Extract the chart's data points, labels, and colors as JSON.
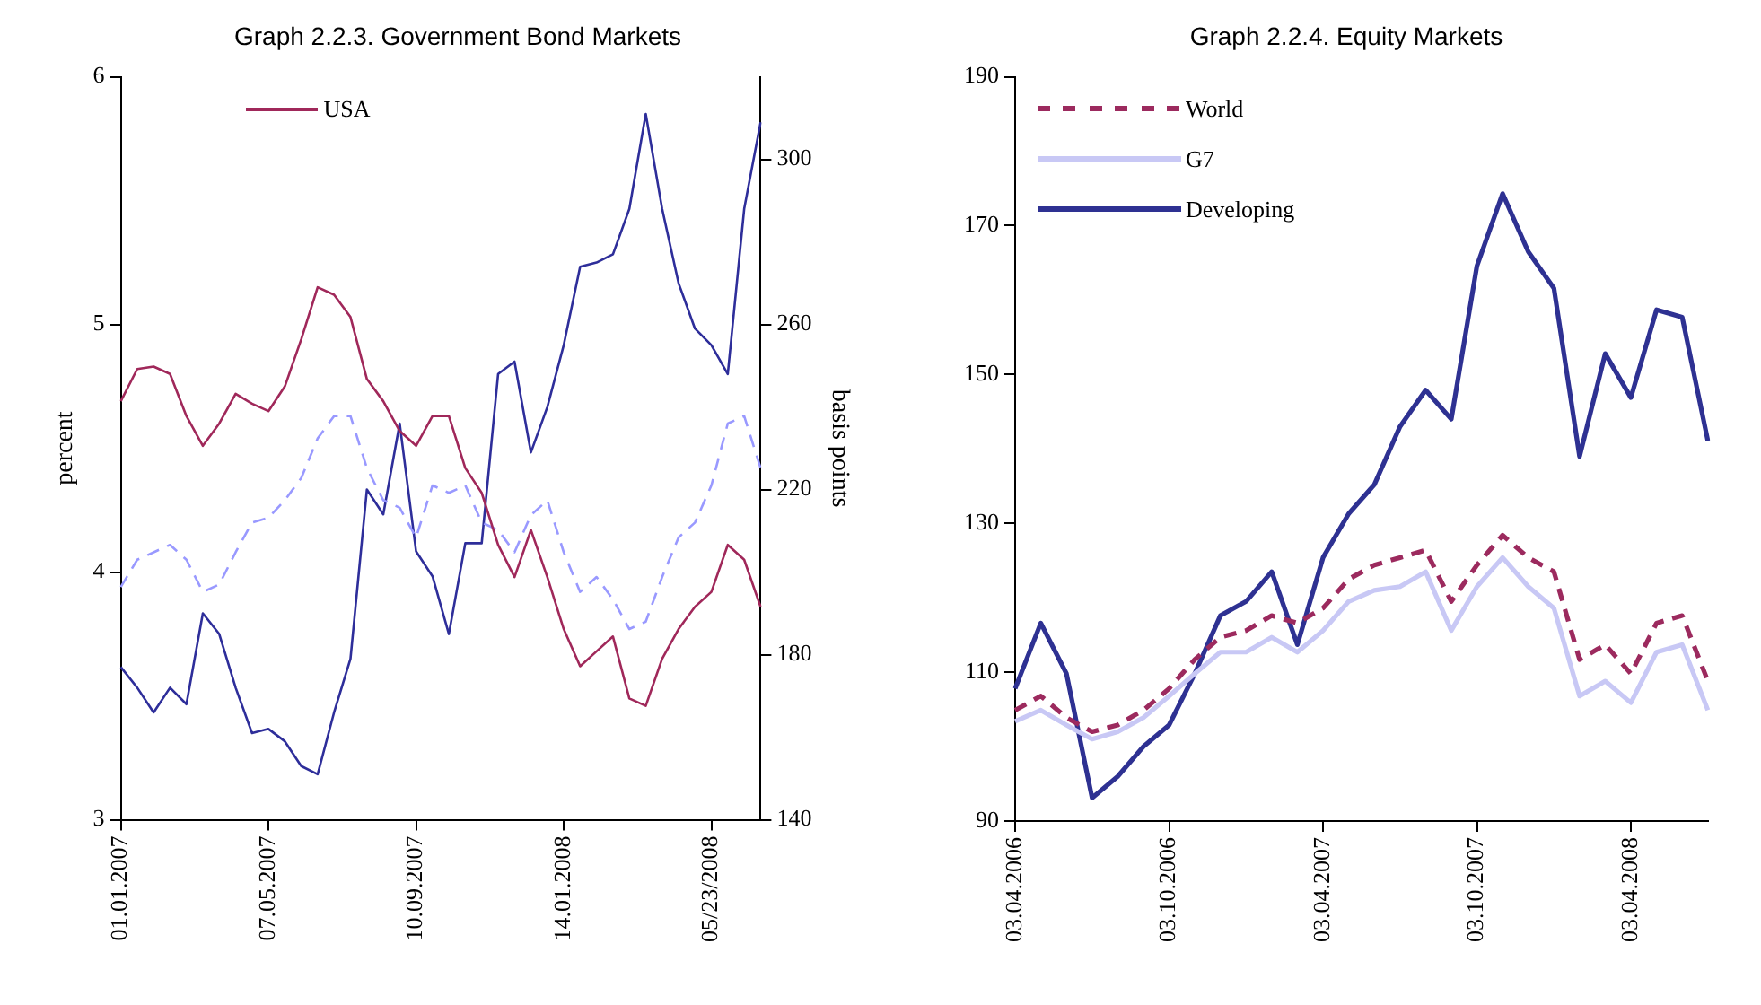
{
  "chart_data": [
    {
      "type": "line",
      "title": "Graph 2.2.3. Government Bond Markets",
      "ylabel": "percent",
      "y2label": "basis points",
      "categories": [
        "01.01.2007",
        null,
        null,
        null,
        null,
        null,
        null,
        null,
        null,
        "07.05.2007",
        null,
        null,
        null,
        null,
        null,
        null,
        null,
        null,
        "10.09.2007",
        null,
        null,
        null,
        null,
        null,
        null,
        null,
        null,
        "14.01.2008",
        null,
        null,
        null,
        null,
        null,
        null,
        null,
        null,
        "05/23/2008",
        null,
        null,
        null
      ],
      "series": [
        {
          "name": "USA",
          "color": "#a0285a",
          "line_style": "solid",
          "values": [
            4.69,
            4.82,
            4.83,
            4.8,
            4.63,
            4.51,
            4.6,
            4.72,
            4.68,
            4.65,
            4.75,
            4.94,
            5.15,
            5.12,
            5.03,
            4.78,
            4.69,
            4.57,
            4.51,
            4.63,
            4.63,
            4.42,
            4.32,
            4.11,
            3.98,
            4.17,
            3.98,
            3.77,
            3.62,
            3.68,
            3.74,
            3.49,
            3.46,
            3.65,
            3.77,
            3.86,
            3.92,
            4.11,
            4.05,
            3.86
          ]
        },
        {
          "color": "#9999ff",
          "line_style": "dashed",
          "values": [
            3.94,
            4.05,
            4.08,
            4.11,
            4.05,
            3.92,
            3.95,
            4.08,
            4.2,
            4.22,
            4.29,
            4.38,
            4.54,
            4.63,
            4.63,
            4.42,
            4.29,
            4.26,
            4.14,
            4.35,
            4.32,
            4.35,
            4.2,
            4.17,
            4.08,
            4.23,
            4.29,
            4.08,
            3.92,
            3.98,
            3.89,
            3.77,
            3.8,
            3.98,
            4.14,
            4.2,
            4.35,
            4.6,
            4.63,
            4.42
          ]
        },
        {
          "color": "#2e2e9a",
          "line_style": "solid",
          "axis": "y2",
          "values": [
            177,
            172,
            166,
            172,
            168,
            190,
            185,
            172,
            161,
            162,
            159,
            153,
            151,
            166,
            179,
            220,
            214,
            236,
            205,
            199,
            185,
            207,
            207,
            248,
            251,
            229,
            240,
            255,
            274,
            275,
            277,
            288,
            311,
            288,
            270,
            259,
            255,
            248,
            288,
            309
          ]
        }
      ],
      "ylim": [
        3,
        6
      ],
      "yticks": [
        3,
        4,
        5,
        6
      ],
      "y2lim": [
        140,
        320
      ],
      "y2ticks": [
        140,
        180,
        220,
        260,
        300
      ],
      "marker": "none",
      "legend": "top left"
    },
    {
      "type": "line",
      "title": "Graph 2.2.4. Equity Markets",
      "categories": [
        "03.04.2006",
        null,
        null,
        null,
        null,
        null,
        "03.10.2006",
        null,
        null,
        null,
        null,
        null,
        "03.04.2007",
        null,
        null,
        null,
        null,
        null,
        "03.10.2007",
        null,
        null,
        null,
        null,
        null,
        "03.04.2008",
        null,
        null,
        null
      ],
      "series": [
        {
          "name": "World",
          "color": "#9c2a5e",
          "line_style": "dashed",
          "values": [
            104.9,
            106.8,
            103.9,
            102,
            102.9,
            104.9,
            107.8,
            111.7,
            114.7,
            115.6,
            117.6,
            116.6,
            118.6,
            122.5,
            124.4,
            125.4,
            126.4,
            119.5,
            124.4,
            128.4,
            125.4,
            123.5,
            111.7,
            113.7,
            109.8,
            116.6,
            117.6,
            108.8
          ]
        },
        {
          "name": "G7",
          "color": "#c8c8f5",
          "line_style": "solid",
          "values": [
            103.4,
            104.9,
            102.9,
            101,
            102,
            103.9,
            106.8,
            109.8,
            112.7,
            112.7,
            114.7,
            112.7,
            115.6,
            119.5,
            121,
            121.5,
            123.5,
            115.6,
            121.5,
            125.4,
            121.5,
            118.6,
            106.8,
            108.8,
            105.9,
            112.7,
            113.7,
            104.9
          ]
        },
        {
          "name": "Developing",
          "color": "#2e3192",
          "line_style": "solid",
          "values": [
            107.8,
            116.6,
            109.8,
            93.1,
            96,
            100,
            102.9,
            109.8,
            117.6,
            119.5,
            123.5,
            113.7,
            125.4,
            131.3,
            135.2,
            143,
            147.9,
            144,
            164.6,
            174.3,
            166.5,
            161.6,
            139,
            152.8,
            146.9,
            158.7,
            157.7,
            141.1
          ]
        }
      ],
      "ylim": [
        90,
        190
      ],
      "yticks": [
        90,
        110,
        130,
        150,
        170,
        190
      ],
      "marker": "none",
      "legend": "top left"
    }
  ]
}
